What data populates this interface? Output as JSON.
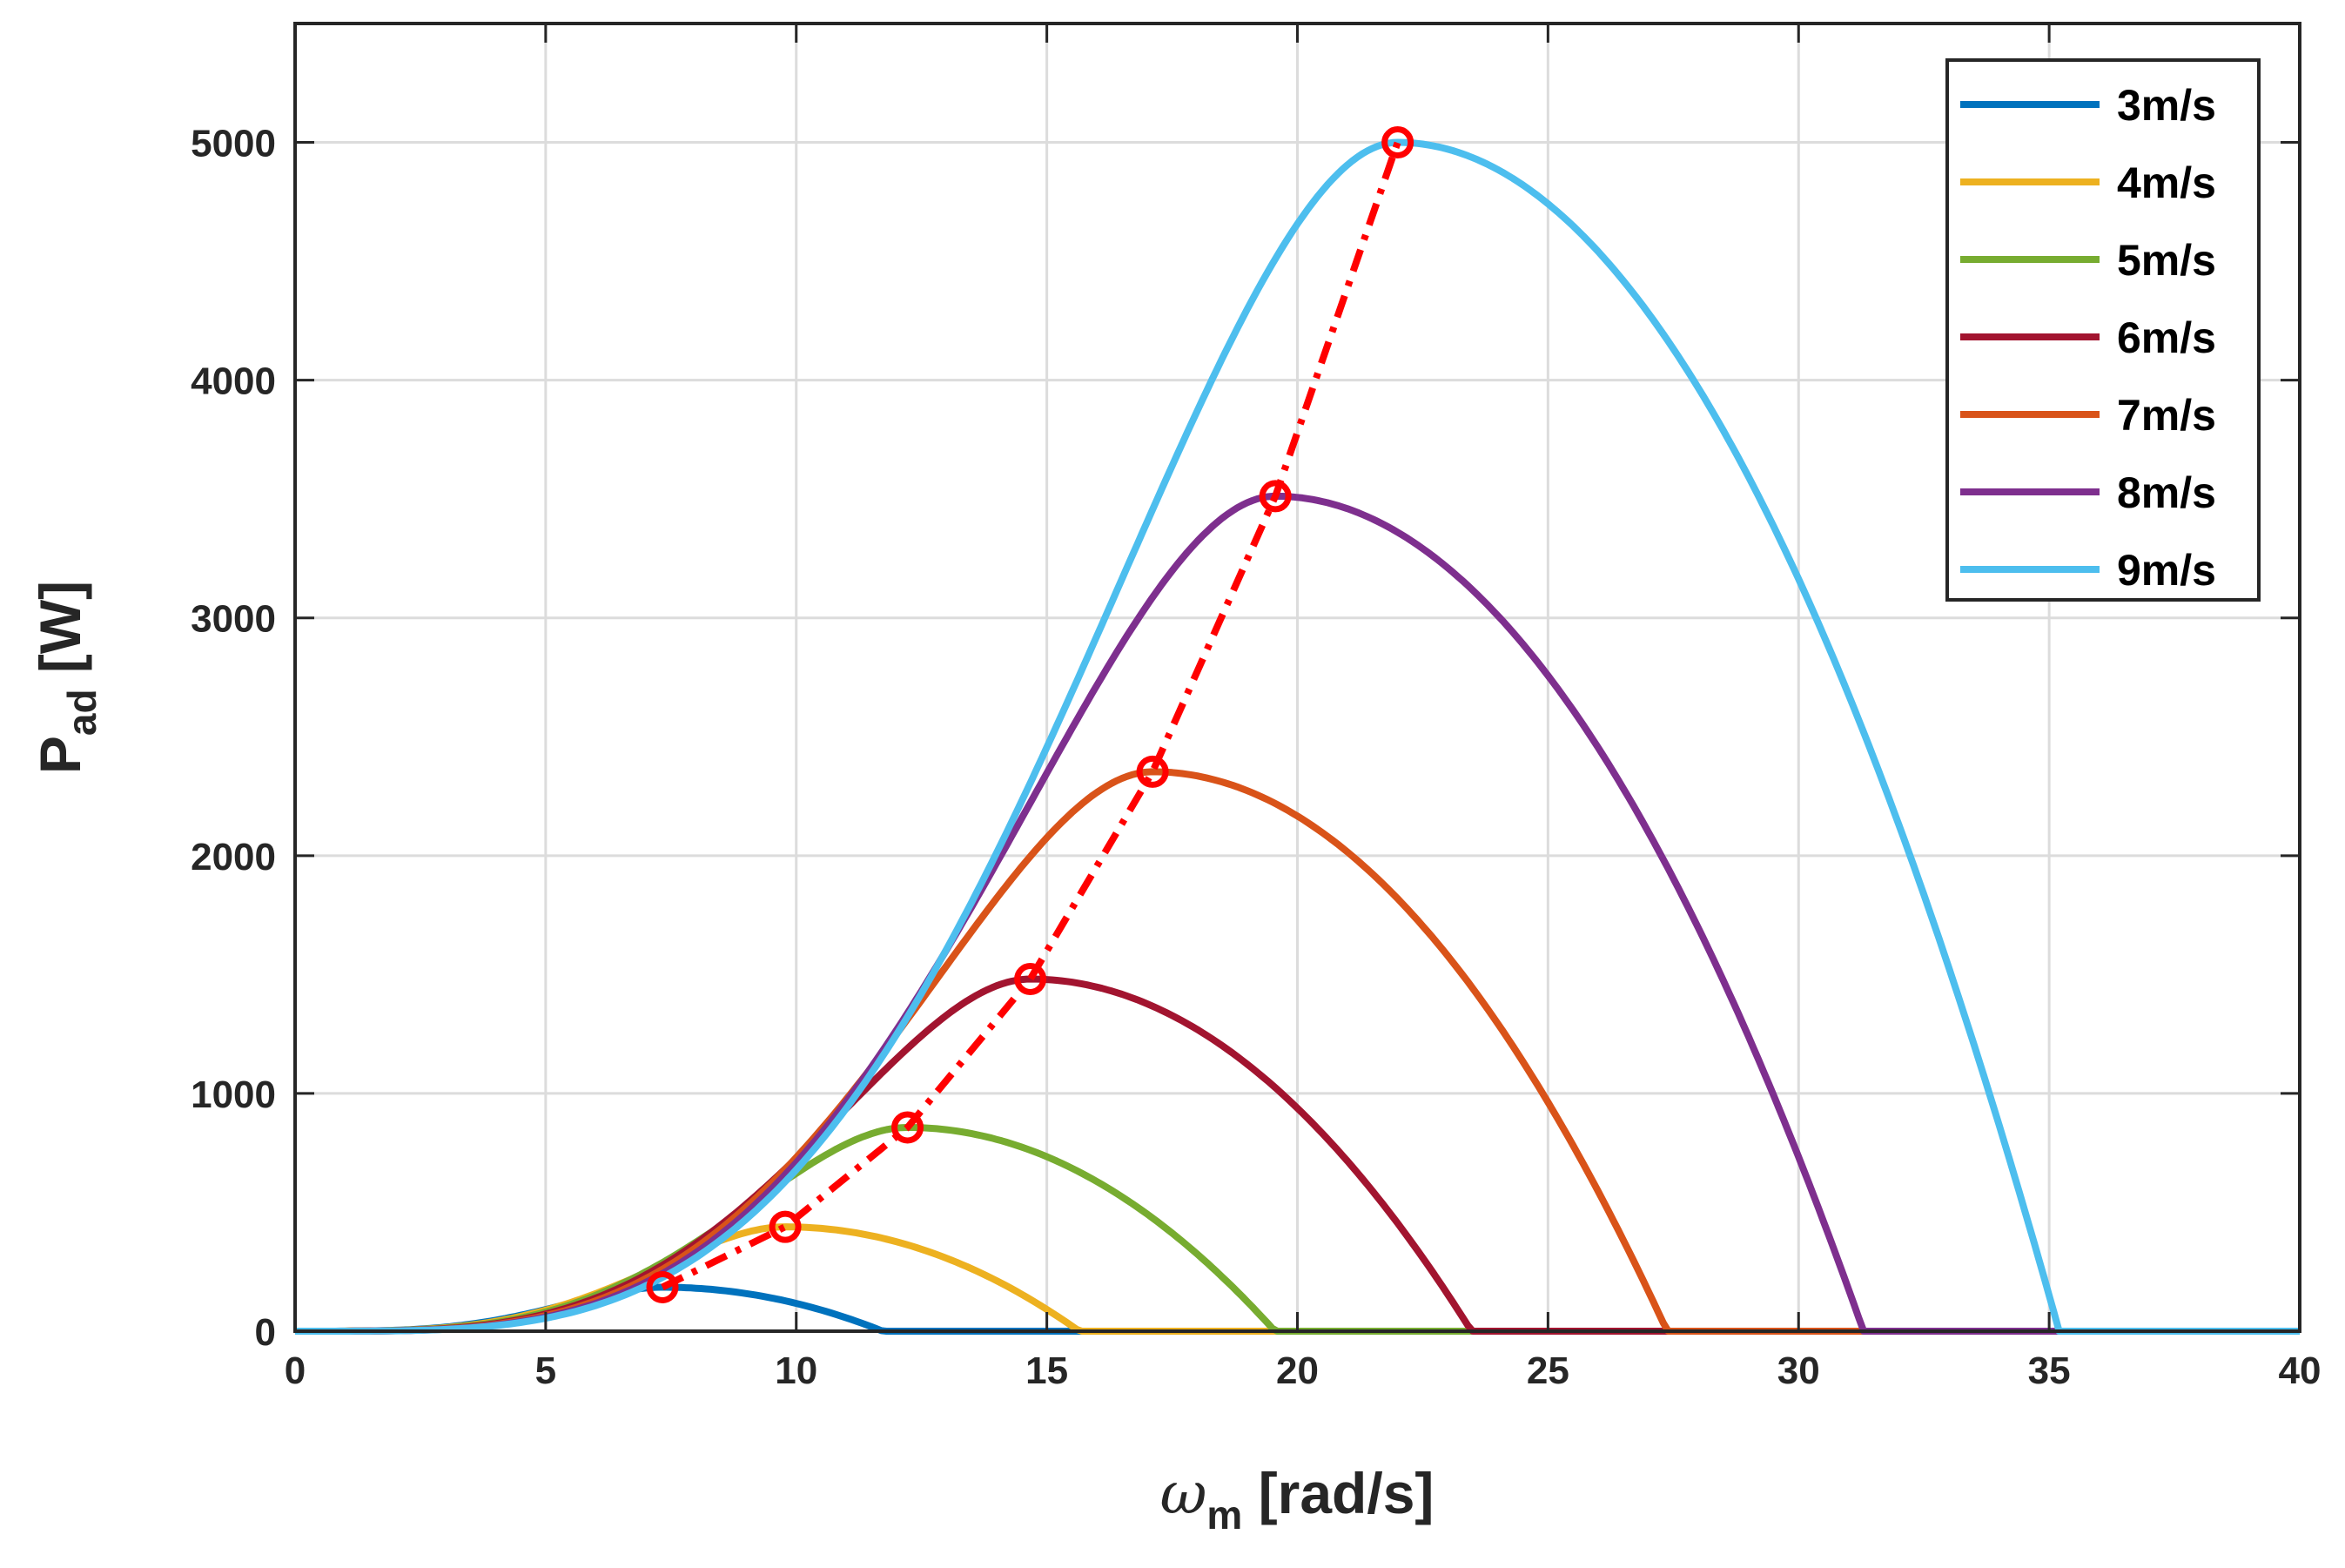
{
  "chart_data": {
    "type": "line",
    "title": "",
    "xlabel": {
      "symbol": "ω",
      "subscript": "m",
      "unit": "[rad/s]"
    },
    "ylabel": {
      "symbol": "P",
      "subscript": "ad",
      "unit": "[W]"
    },
    "xlim": [
      0,
      40
    ],
    "ylim": [
      0,
      5500
    ],
    "xticks": [
      0,
      5,
      10,
      15,
      20,
      25,
      30,
      35,
      40
    ],
    "yticks": [
      0,
      1000,
      2000,
      3000,
      4000,
      5000
    ],
    "grid": true,
    "legend_position": "top-right",
    "model": {
      "p_max_at_9ms": 5000,
      "omega_opt_at_9ms": 22,
      "omega_cutoff_ratio": 1.6
    },
    "series": [
      {
        "name": "3m/s",
        "wind_speed": 3,
        "color": "#0072BD",
        "omega_opt": 7.33,
        "p_max": 185
      },
      {
        "name": "4m/s",
        "wind_speed": 4,
        "color": "#EDB120",
        "omega_opt": 9.78,
        "p_max": 439
      },
      {
        "name": "5m/s",
        "wind_speed": 5,
        "color": "#77AC30",
        "omega_opt": 12.22,
        "p_max": 857
      },
      {
        "name": "6m/s",
        "wind_speed": 6,
        "color": "#A2142F",
        "omega_opt": 14.67,
        "p_max": 1481
      },
      {
        "name": "7m/s",
        "wind_speed": 7,
        "color": "#D95319",
        "omega_opt": 17.11,
        "p_max": 2353
      },
      {
        "name": "8m/s",
        "wind_speed": 8,
        "color": "#7E2F8E",
        "omega_opt": 19.56,
        "p_max": 3512
      },
      {
        "name": "9m/s",
        "wind_speed": 9,
        "color": "#4DBEEE",
        "omega_opt": 22.0,
        "p_max": 5000
      }
    ],
    "mppt_curve": {
      "color": "#FF0000",
      "style": "dash-dot with circle markers",
      "points": [
        {
          "x": 7.33,
          "y": 185
        },
        {
          "x": 9.78,
          "y": 439
        },
        {
          "x": 12.22,
          "y": 857
        },
        {
          "x": 14.67,
          "y": 1481
        },
        {
          "x": 17.11,
          "y": 2353
        },
        {
          "x": 19.56,
          "y": 3512
        },
        {
          "x": 22.0,
          "y": 5000
        }
      ]
    }
  }
}
